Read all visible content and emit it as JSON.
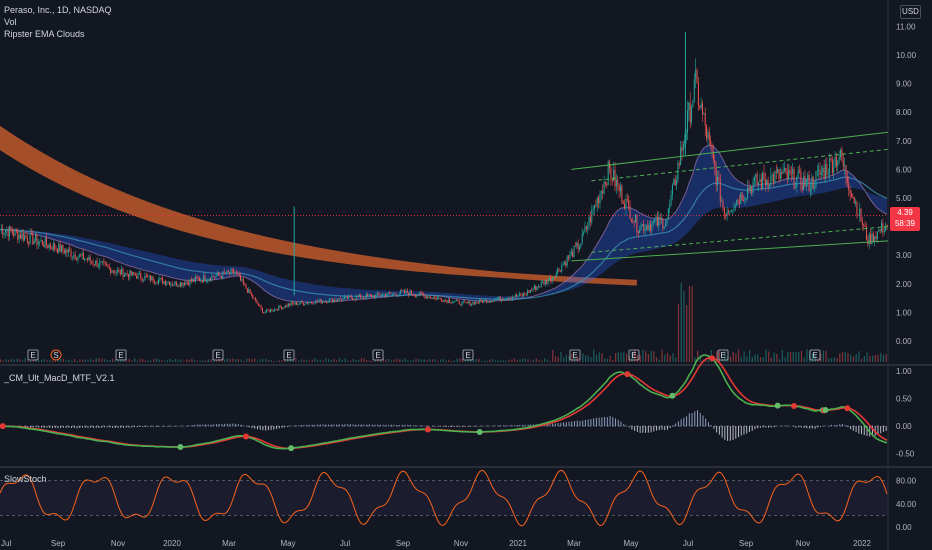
{
  "header": {
    "symbol_line": "Peraso, Inc., 1D, NASDAQ",
    "volume_label": "Vol",
    "indicator_label": "Ripster EMA Clouds"
  },
  "currency": "USD",
  "last_price": {
    "value": "4.39",
    "countdown": "58:39"
  },
  "panes": {
    "macd_label": "_CM_Ult_MacD_MTF_V2.1",
    "stoch_label": "SlowStoch"
  },
  "colors": {
    "background": "#131722",
    "up": "#26a69a",
    "down": "#ef5350",
    "ema_cloud": "#2962ff",
    "long_ema": "#c0592b",
    "channel": "#4caf50",
    "stoch": "#f7631b",
    "price_line": "#f23645"
  },
  "chart_data": [
    {
      "type": "line",
      "title": "Peraso, Inc., 1D, NASDAQ",
      "y_tick_labels": [
        "11.00",
        "10.00",
        "9.00",
        "8.00",
        "7.00",
        "6.00",
        "5.00",
        "4.00",
        "3.00",
        "2.00",
        "1.00",
        "0.00"
      ],
      "x_tick_labels": [
        "Jul",
        "Sep",
        "Nov",
        "2020",
        "Mar",
        "May",
        "Jul",
        "Sep",
        "Nov",
        "2021",
        "Mar",
        "May",
        "Jul",
        "Sep",
        "Nov",
        "2022"
      ],
      "ylim": [
        0,
        11.5
      ],
      "last": 4.39,
      "price_path": {
        "x": [
          "2019-06",
          "2019-08",
          "2019-10",
          "2019-12",
          "2020-02",
          "2020-03",
          "2020-04",
          "2020-06",
          "2020-08",
          "2020-10",
          "2020-12",
          "2021-01",
          "2021-02",
          "2021-03",
          "2021-04",
          "2021-05",
          "2021-06",
          "2021-07",
          "2021-08",
          "2021-09",
          "2021-10",
          "2021-11",
          "2021-12",
          "2022-01"
        ],
        "values": [
          3.9,
          3.2,
          2.4,
          2.0,
          2.4,
          1.0,
          1.3,
          1.5,
          1.7,
          1.3,
          1.6,
          2.2,
          3.4,
          6.0,
          4.0,
          4.2,
          9.0,
          4.5,
          5.5,
          5.8,
          5.5,
          6.5,
          3.5,
          4.4
        ]
      },
      "event_markers": [
        "E",
        "S",
        "E",
        "E",
        "E",
        "E",
        "E",
        "E",
        "E",
        "E",
        "E"
      ],
      "channel": {
        "upper": [
          6.0,
          7.3
        ],
        "lower": [
          2.8,
          3.5
        ]
      }
    },
    {
      "type": "line",
      "title": "_CM_Ult_MacD_MTF_V2.1",
      "y_tick_labels": [
        "1.00",
        "0.50",
        "0.00",
        "-0.50"
      ],
      "ylim": [
        -0.7,
        1.05
      ]
    },
    {
      "type": "line",
      "title": "SlowStoch",
      "y_tick_labels": [
        "80.00",
        "40.00",
        "0.00"
      ],
      "levels": [
        80,
        20
      ],
      "ylim": [
        -5,
        100
      ]
    }
  ]
}
